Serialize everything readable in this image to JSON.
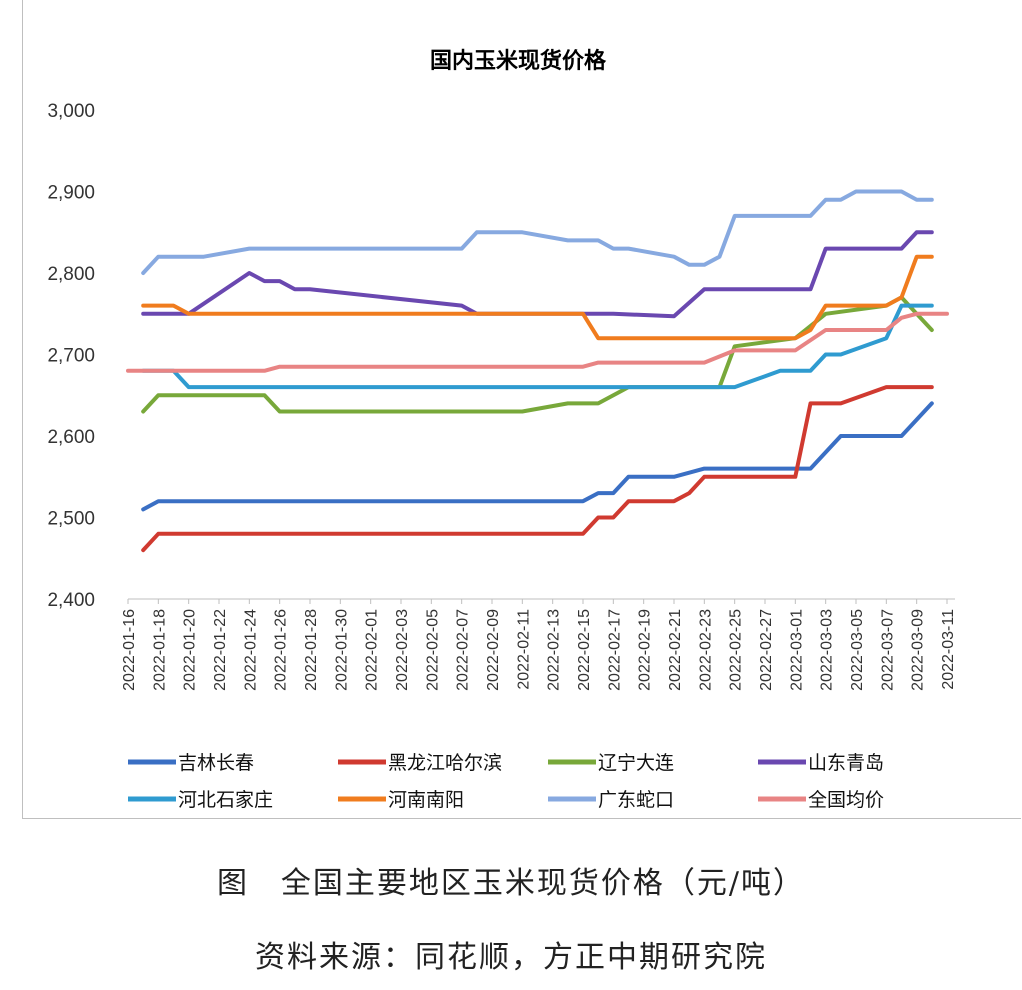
{
  "chart_data": {
    "type": "line",
    "title": "国内玉米现货价格",
    "xlabel": "",
    "ylabel": "",
    "ylim": [
      2400,
      3000
    ],
    "yticks": [
      "2,400",
      "2,500",
      "2,600",
      "2,700",
      "2,800",
      "2,900",
      "3,000"
    ],
    "xlim": [
      "2022-01-16",
      "2022-03-11"
    ],
    "xticks": [
      "2022-01-16",
      "2022-01-18",
      "2022-01-20",
      "2022-01-22",
      "2022-01-24",
      "2022-01-26",
      "2022-01-28",
      "2022-01-30",
      "2022-02-01",
      "2022-02-03",
      "2022-02-05",
      "2022-02-07",
      "2022-02-09",
      "2022-02-11",
      "2022-02-13",
      "2022-02-15",
      "2022-02-17",
      "2022-02-19",
      "2022-02-21",
      "2022-02-23",
      "2022-02-25",
      "2022-02-27",
      "2022-03-01",
      "2022-03-03",
      "2022-03-05",
      "2022-03-07",
      "2022-03-09",
      "2022-03-11"
    ],
    "grid": false,
    "legend_position": "bottom",
    "series": [
      {
        "name": "吉林长春",
        "color": "#3a6fc4",
        "points": [
          [
            "2022-01-17",
            2510
          ],
          [
            "2022-01-18",
            2520
          ],
          [
            "2022-02-15",
            2520
          ],
          [
            "2022-02-16",
            2530
          ],
          [
            "2022-02-17",
            2530
          ],
          [
            "2022-02-18",
            2550
          ],
          [
            "2022-02-21",
            2550
          ],
          [
            "2022-02-22",
            2555
          ],
          [
            "2022-02-23",
            2560
          ],
          [
            "2022-03-02",
            2560
          ],
          [
            "2022-03-04",
            2600
          ],
          [
            "2022-03-08",
            2600
          ],
          [
            "2022-03-10",
            2640
          ]
        ]
      },
      {
        "name": "黑龙江哈尔滨",
        "color": "#d03a30",
        "points": [
          [
            "2022-01-17",
            2460
          ],
          [
            "2022-01-18",
            2480
          ],
          [
            "2022-02-15",
            2480
          ],
          [
            "2022-02-16",
            2500
          ],
          [
            "2022-02-17",
            2500
          ],
          [
            "2022-02-18",
            2520
          ],
          [
            "2022-02-21",
            2520
          ],
          [
            "2022-02-22",
            2530
          ],
          [
            "2022-02-23",
            2550
          ],
          [
            "2022-03-01",
            2550
          ],
          [
            "2022-03-02",
            2640
          ],
          [
            "2022-03-04",
            2640
          ],
          [
            "2022-03-07",
            2660
          ],
          [
            "2022-03-10",
            2660
          ]
        ]
      },
      {
        "name": "辽宁大连",
        "color": "#78a83a",
        "points": [
          [
            "2022-01-17",
            2630
          ],
          [
            "2022-01-18",
            2650
          ],
          [
            "2022-01-25",
            2650
          ],
          [
            "2022-01-26",
            2630
          ],
          [
            "2022-02-11",
            2630
          ],
          [
            "2022-02-14",
            2640
          ],
          [
            "2022-02-16",
            2640
          ],
          [
            "2022-02-18",
            2660
          ],
          [
            "2022-02-24",
            2660
          ],
          [
            "2022-02-25",
            2710
          ],
          [
            "2022-03-01",
            2720
          ],
          [
            "2022-03-03",
            2750
          ],
          [
            "2022-03-07",
            2760
          ],
          [
            "2022-03-08",
            2770
          ],
          [
            "2022-03-09",
            2750
          ],
          [
            "2022-03-10",
            2730
          ]
        ]
      },
      {
        "name": "山东青岛",
        "color": "#6a48b0",
        "points": [
          [
            "2022-01-17",
            2750
          ],
          [
            "2022-01-20",
            2750
          ],
          [
            "2022-01-24",
            2800
          ],
          [
            "2022-01-25",
            2790
          ],
          [
            "2022-01-26",
            2790
          ],
          [
            "2022-01-27",
            2780
          ],
          [
            "2022-01-28",
            2780
          ],
          [
            "2022-02-07",
            2760
          ],
          [
            "2022-02-08",
            2750
          ],
          [
            "2022-02-15",
            2750
          ],
          [
            "2022-02-16",
            2750
          ],
          [
            "2022-02-17",
            2750
          ],
          [
            "2022-02-21",
            2747
          ],
          [
            "2022-02-23",
            2780
          ],
          [
            "2022-03-02",
            2780
          ],
          [
            "2022-03-03",
            2830
          ],
          [
            "2022-03-08",
            2830
          ],
          [
            "2022-03-09",
            2850
          ],
          [
            "2022-03-10",
            2850
          ]
        ]
      },
      {
        "name": "河北石家庄",
        "color": "#2f9bd0",
        "points": [
          [
            "2022-01-17",
            2680
          ],
          [
            "2022-01-19",
            2680
          ],
          [
            "2022-01-20",
            2660
          ],
          [
            "2022-02-25",
            2660
          ],
          [
            "2022-02-28",
            2680
          ],
          [
            "2022-03-02",
            2680
          ],
          [
            "2022-03-03",
            2700
          ],
          [
            "2022-03-04",
            2700
          ],
          [
            "2022-03-07",
            2720
          ],
          [
            "2022-03-08",
            2760
          ],
          [
            "2022-03-10",
            2760
          ]
        ]
      },
      {
        "name": "河南南阳",
        "color": "#f07c1e",
        "points": [
          [
            "2022-01-17",
            2760
          ],
          [
            "2022-01-19",
            2760
          ],
          [
            "2022-01-20",
            2750
          ],
          [
            "2022-02-15",
            2750
          ],
          [
            "2022-02-16",
            2720
          ],
          [
            "2022-03-01",
            2720
          ],
          [
            "2022-03-02",
            2730
          ],
          [
            "2022-03-03",
            2760
          ],
          [
            "2022-03-07",
            2760
          ],
          [
            "2022-03-08",
            2770
          ],
          [
            "2022-03-09",
            2820
          ],
          [
            "2022-03-10",
            2820
          ]
        ]
      },
      {
        "name": "广东蛇口",
        "color": "#87a9e0",
        "points": [
          [
            "2022-01-17",
            2800
          ],
          [
            "2022-01-18",
            2820
          ],
          [
            "2022-01-21",
            2820
          ],
          [
            "2022-01-24",
            2830
          ],
          [
            "2022-02-07",
            2830
          ],
          [
            "2022-02-08",
            2850
          ],
          [
            "2022-02-11",
            2850
          ],
          [
            "2022-02-14",
            2840
          ],
          [
            "2022-02-16",
            2840
          ],
          [
            "2022-02-17",
            2830
          ],
          [
            "2022-02-18",
            2830
          ],
          [
            "2022-02-21",
            2820
          ],
          [
            "2022-02-22",
            2810
          ],
          [
            "2022-02-23",
            2810
          ],
          [
            "2022-02-24",
            2820
          ],
          [
            "2022-02-25",
            2870
          ],
          [
            "2022-03-02",
            2870
          ],
          [
            "2022-03-03",
            2890
          ],
          [
            "2022-03-04",
            2890
          ],
          [
            "2022-03-05",
            2900
          ],
          [
            "2022-03-08",
            2900
          ],
          [
            "2022-03-09",
            2890
          ],
          [
            "2022-03-10",
            2890
          ]
        ]
      },
      {
        "name": "全国均价",
        "color": "#e88484",
        "points": [
          [
            "2022-01-16",
            2680
          ],
          [
            "2022-01-25",
            2680
          ],
          [
            "2022-01-26",
            2685
          ],
          [
            "2022-02-15",
            2685
          ],
          [
            "2022-02-16",
            2690
          ],
          [
            "2022-02-23",
            2690
          ],
          [
            "2022-02-25",
            2705
          ],
          [
            "2022-03-01",
            2705
          ],
          [
            "2022-03-03",
            2730
          ],
          [
            "2022-03-07",
            2730
          ],
          [
            "2022-03-08",
            2745
          ],
          [
            "2022-03-09",
            2750
          ],
          [
            "2022-03-11",
            2750
          ]
        ]
      }
    ]
  },
  "caption": "图　全国主要地区玉米现货价格（元/吨）",
  "source": "资料来源：同花顺，方正中期研究院"
}
